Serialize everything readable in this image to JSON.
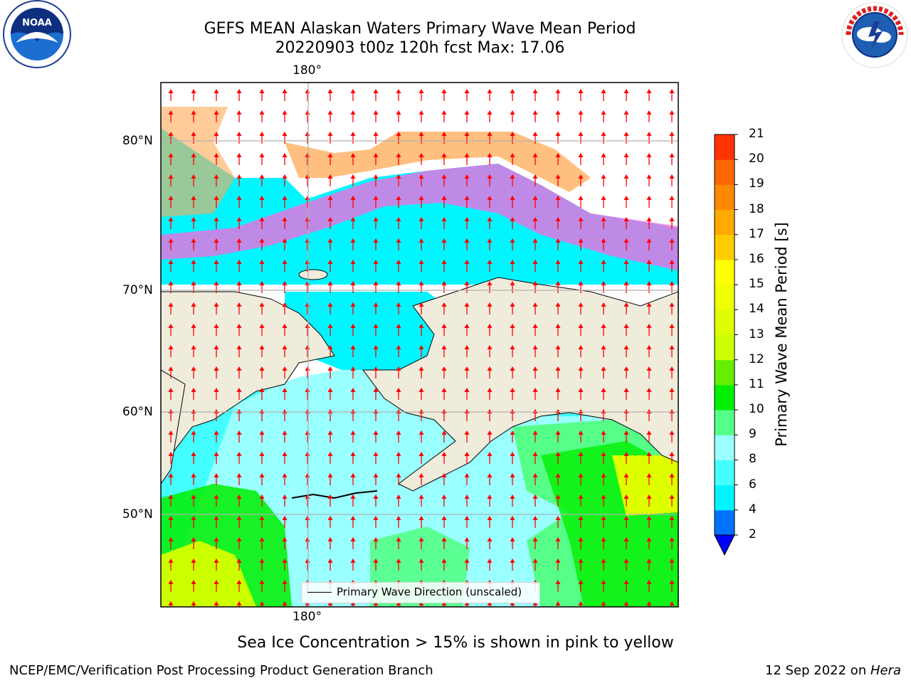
{
  "header": {
    "title_line1": "GEFS MEAN Alaskan Waters Primary Wave Mean Period",
    "title_line2": "20220903 t00z 120h fcst   Max: 17.06"
  },
  "logos": {
    "left": "noaa-logo",
    "right": "national-weather-service-logo"
  },
  "map": {
    "lon_label_top": "180°",
    "lon_label_bottom": "180°",
    "lat_labels": [
      "80°N",
      "70°N",
      "60°N",
      "50°N"
    ],
    "land_color": "#efecdc",
    "arrow_color": "#ff0000",
    "legend_label": "Primary Wave Direction (unscaled)"
  },
  "colorbar": {
    "title": "Primary Wave Mean Period [s]",
    "ticks": [
      "2",
      "4",
      "6",
      "8",
      "9",
      "10",
      "11",
      "12",
      "13",
      "14",
      "15",
      "16",
      "17",
      "18",
      "19",
      "20",
      "21"
    ],
    "colors": [
      "#0072ff",
      "#00f5ff",
      "#44ffff",
      "#99ffff",
      "#55ff88",
      "#00f000",
      "#66ee00",
      "#ccff00",
      "#ddff00",
      "#eeff00",
      "#ffff00",
      "#ffcc00",
      "#ffaa00",
      "#ff8800",
      "#ff6600",
      "#ff3300",
      "#ff0000"
    ],
    "under_color": "#0000ff"
  },
  "notes": {
    "sea_ice": "Sea Ice Concentration > 15% is shown in pink to yellow"
  },
  "footer": {
    "left": "NCEP/EMC/Verification Post Processing Product Generation Branch",
    "right_date": "12 Sep 2022 on ",
    "right_machine": "Hera"
  }
}
